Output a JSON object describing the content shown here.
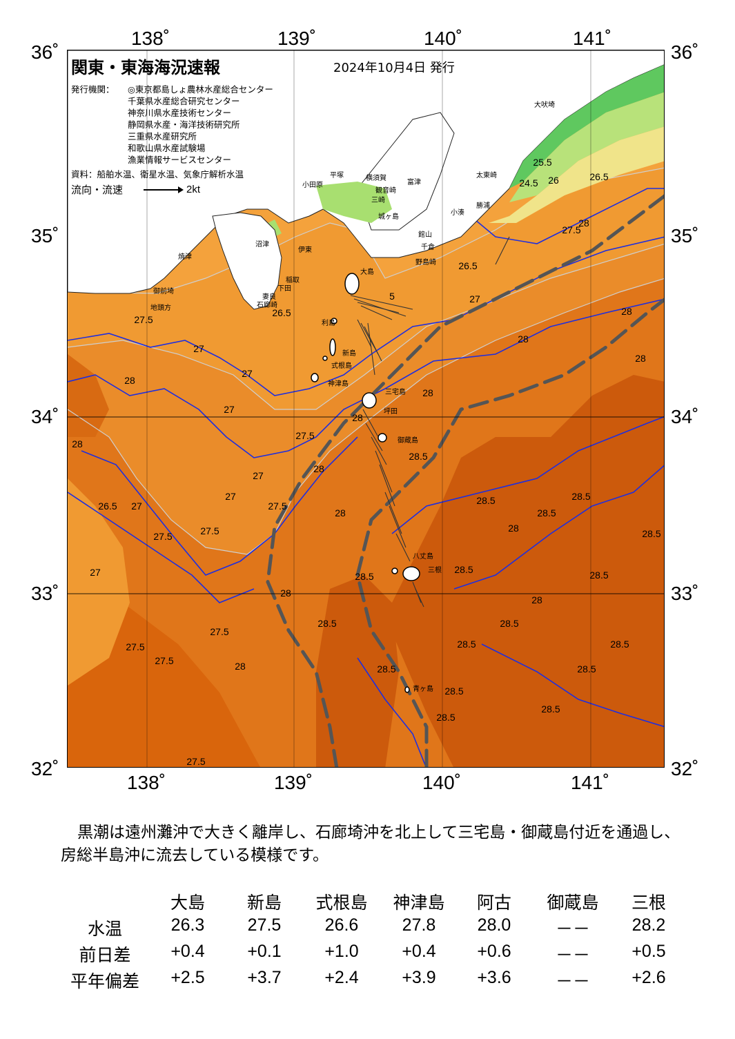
{
  "axes": {
    "lon_ticks": [
      "138˚",
      "139˚",
      "140˚",
      "141˚"
    ],
    "lat_ticks": [
      "36˚",
      "35˚",
      "34˚",
      "33˚",
      "32˚"
    ]
  },
  "map": {
    "title": "関東・東海海況速報",
    "date": "2024年10月4日 発行",
    "issuers_label": "発行機関：",
    "issuers": [
      "◎東京都島しょ農林水産総合センター",
      "千葉県水産総合研究センター",
      "神奈川県水産技術センター",
      "静岡県水産・海洋技術研究所",
      "三重県水産研究所",
      "和歌山県水産試験場",
      "漁業情報サービスセンター"
    ],
    "source": "資料：船舶水温、衛星水温、気象庁解析水温",
    "legend_label": "流向・流速",
    "legend_value": "2kt",
    "places": {
      "oshima": "大島",
      "toshima": "利島",
      "niijima": "新島",
      "shikinejima": "式根島",
      "kozushima": "神津島",
      "miyakejima": "三宅島",
      "tsubota": "坪田",
      "mikurajima": "御蔵島",
      "hachijojima": "八丈島",
      "mitsune": "三根",
      "aogashima": "青ヶ島",
      "choshi": "大吠埼",
      "taito": "太東崎",
      "katsuura": "勝浦",
      "kominato": "小湊",
      "tateyama": "館山",
      "chikura": "千倉",
      "nojimazaki": "野島崎",
      "odawara": "小田原",
      "hiratsuka": "平塚",
      "yokosuka": "横須賀",
      "kannonzaki": "観音崎",
      "futtsu": "富津",
      "misaki": "三崎",
      "jogashima": "城ヶ島",
      "numazu": "沼津",
      "yaizu": "焼津",
      "omaezaki": "御前埼",
      "ito": "伊東",
      "inatori": "稲取",
      "shimoda": "下田",
      "mera": "妻良",
      "irozaki": "石廊崎",
      "chikyu": "地頭方"
    },
    "isotherms": [
      "24.5",
      "25.5",
      "26",
      "26.5",
      "27",
      "27.5",
      "28",
      "28.5",
      "5"
    ]
  },
  "description": "黒潮は遠州灘沖で大きく離岸し、石廊埼沖を北上して三宅島・御蔵島付近を通過し、房総半島沖に流去している模様です。",
  "table": {
    "columns": [
      "大島",
      "新島",
      "式根島",
      "神津島",
      "阿古",
      "御蔵島",
      "三根"
    ],
    "rows": [
      {
        "label": "水温",
        "values": [
          "26.3",
          "27.5",
          "26.6",
          "27.8",
          "28.0",
          "－－",
          "28.2"
        ]
      },
      {
        "label": "前日差",
        "values": [
          "+0.4",
          "+0.1",
          "+1.0",
          "+0.4",
          "+0.6",
          "－－",
          "+0.5"
        ]
      },
      {
        "label": "平年偏差",
        "values": [
          "+2.5",
          "+3.7",
          "+2.4",
          "+3.9",
          "+3.6",
          "－－",
          "+2.6"
        ]
      }
    ]
  }
}
